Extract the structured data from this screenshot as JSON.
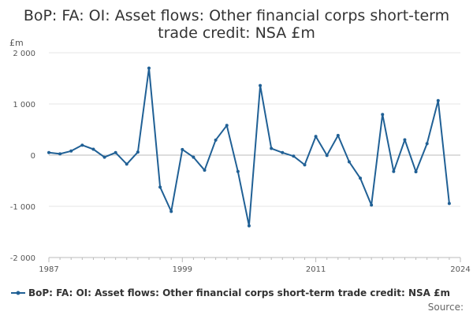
{
  "chart_data": {
    "type": "line",
    "title_lines": [
      "BoP: FA: OI: Asset flows: Other financial corps short-term",
      "trade credit: NSA £m"
    ],
    "y_unit_label": "£m",
    "ylim": [
      -2000,
      2000
    ],
    "y_ticks": [
      2000,
      1000,
      0,
      -1000,
      -2000
    ],
    "y_tick_labels": [
      "2 000",
      "1 000",
      "0",
      "-1 000",
      "-2 000"
    ],
    "xlim": [
      1987,
      2024
    ],
    "x_ticks": [
      1987,
      1999,
      2011,
      2024
    ],
    "x_tick_labels": [
      "1987",
      "1999",
      "2011",
      "2024"
    ],
    "grid": "horizontal",
    "legend_position": "bottom",
    "source_label": "Source:",
    "colors": {
      "series": "#206095",
      "grid": "#e6e6e6",
      "axis": "#bbbbbb"
    },
    "series": [
      {
        "name": "BoP: FA: OI: Asset flows: Other financial corps short-term trade credit: NSA £m",
        "x": [
          1987,
          1988,
          1989,
          1990,
          1991,
          1992,
          1993,
          1994,
          1995,
          1996,
          1997,
          1998,
          1999,
          2000,
          2001,
          2002,
          2003,
          2004,
          2005,
          2006,
          2007,
          2008,
          2009,
          2010,
          2011,
          2012,
          2013,
          2014,
          2015,
          2016,
          2017,
          2018,
          2019,
          2020,
          2021,
          2022,
          2023
        ],
        "values": [
          50,
          25,
          80,
          195,
          115,
          -40,
          50,
          -175,
          60,
          1700,
          -625,
          -1100,
          110,
          -40,
          -295,
          295,
          580,
          -320,
          -1380,
          1360,
          130,
          50,
          -20,
          -190,
          365,
          -5,
          385,
          -130,
          -450,
          -975,
          795,
          -320,
          300,
          -325,
          225,
          1065,
          -945
        ]
      }
    ]
  }
}
